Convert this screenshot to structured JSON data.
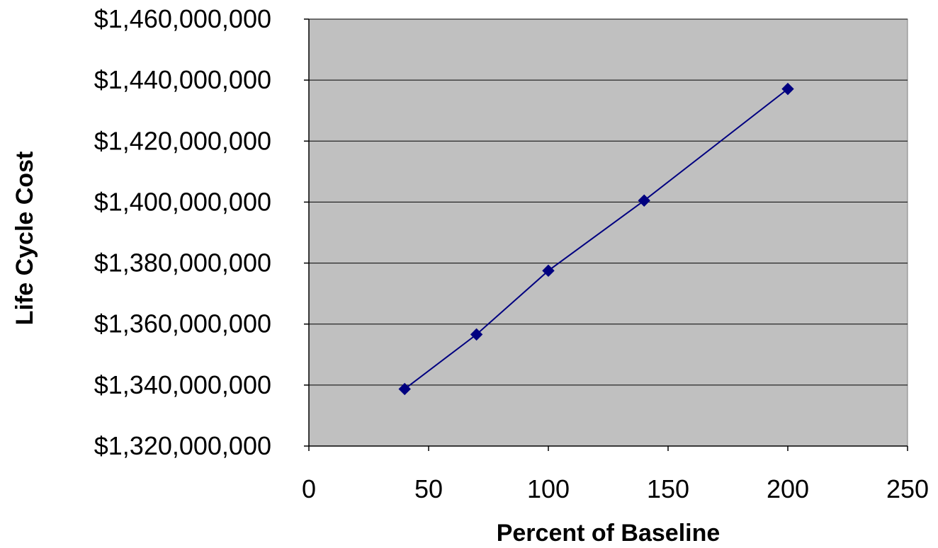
{
  "chart_data": {
    "type": "line",
    "title": "",
    "xlabel": "Percent of Baseline",
    "ylabel": "Life Cycle Cost",
    "xlim": [
      0,
      250
    ],
    "ylim": [
      1320000000,
      1460000000
    ],
    "x_ticks": [
      0,
      50,
      100,
      150,
      200,
      250
    ],
    "y_ticks": [
      1320000000,
      1340000000,
      1360000000,
      1380000000,
      1400000000,
      1420000000,
      1440000000,
      1460000000
    ],
    "y_tick_labels": [
      "$1,320,000,000",
      "$1,340,000,000",
      "$1,360,000,000",
      "$1,380,000,000",
      "$1,400,000,000",
      "$1,420,000,000",
      "$1,440,000,000",
      "$1,460,000,000"
    ],
    "x_tick_labels": [
      "0",
      "50",
      "100",
      "150",
      "200",
      "250"
    ],
    "grid": "horizontal",
    "legend": "none",
    "series": [
      {
        "x": [
          40,
          70,
          100,
          140,
          200
        ],
        "y": [
          1338700000,
          1356600000,
          1377500000,
          1400500000,
          1437100000
        ],
        "color": "#000080",
        "marker": "diamond"
      }
    ],
    "plot_background": "#c0c0c0",
    "gridline_color": "#000000"
  }
}
